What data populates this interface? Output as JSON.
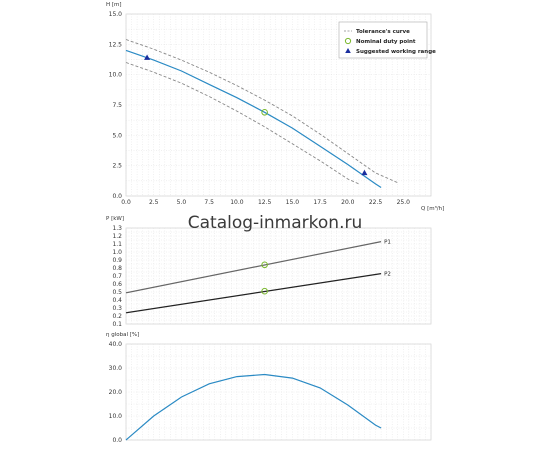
{
  "watermark": "Catalog-inmarkon.ru",
  "chart_data": [
    {
      "type": "line",
      "ylabel": "H [m]",
      "xlabel": "Q [m³/h]",
      "xlim": [
        0,
        27.5
      ],
      "ylim": [
        0,
        15
      ],
      "xticks": [
        0,
        2.5,
        5,
        7.5,
        10,
        12.5,
        15,
        17.5,
        20,
        22.5,
        25
      ],
      "xtick_labels": [
        "0.0",
        "2.5",
        "5.0",
        "7.5",
        "10.0",
        "12.5",
        "15.0",
        "17.5",
        "20.0",
        "22.5",
        "25.0"
      ],
      "yticks": [
        0,
        2.5,
        5,
        7.5,
        10,
        12.5,
        15
      ],
      "ytick_labels": [
        "0.0",
        "2.5",
        "5.0",
        "7.5",
        "10.0",
        "12.5",
        "15.0"
      ],
      "grid": true,
      "legend": {
        "placement": "top-right",
        "items": [
          {
            "label": "Tolerance's curve",
            "marker": "dash"
          },
          {
            "label": "Nominal duty point",
            "marker": "circle"
          },
          {
            "label": "Suggested working range",
            "marker": "triangle"
          }
        ]
      },
      "series": [
        {
          "role": "main",
          "color": "#2a8ac4",
          "x": [
            0,
            2.5,
            5,
            7.5,
            10,
            12.5,
            15,
            17.5,
            20,
            22.5,
            23
          ],
          "y": [
            12.0,
            11.2,
            10.3,
            9.2,
            8.1,
            6.9,
            5.6,
            4.1,
            2.6,
            1.0,
            0.7
          ]
        },
        {
          "role": "tolerance-upper",
          "color": "#888888",
          "x": [
            0,
            2.5,
            5,
            7.5,
            10,
            12.5,
            15,
            17.5,
            20,
            22.5,
            24.5
          ],
          "y": [
            12.9,
            12.1,
            11.2,
            10.2,
            9.1,
            7.9,
            6.6,
            5.1,
            3.5,
            1.9,
            1.1
          ]
        },
        {
          "role": "tolerance-lower",
          "color": "#888888",
          "x": [
            0,
            2.5,
            5,
            7.5,
            10,
            12.5,
            15,
            17.5,
            20,
            21
          ],
          "y": [
            11.0,
            10.2,
            9.3,
            8.2,
            7.0,
            5.7,
            4.3,
            2.9,
            1.4,
            1.0
          ]
        }
      ],
      "points": [
        {
          "type": "nominal",
          "x": 12.5,
          "y": 6.9
        },
        {
          "type": "range",
          "x": 1.9,
          "y": 11.4
        },
        {
          "type": "range",
          "x": 21.5,
          "y": 1.9
        }
      ]
    },
    {
      "type": "line",
      "ylabel": "P [kW]",
      "xlim": [
        0,
        27.5
      ],
      "ylim": [
        0.1,
        1.3
      ],
      "yticks": [
        0.1,
        0.2,
        0.3,
        0.4,
        0.5,
        0.6,
        0.7,
        0.8,
        0.9,
        1.0,
        1.1,
        1.2,
        1.3
      ],
      "ytick_labels": [
        "0.1",
        "0.2",
        "0.3",
        "0.4",
        "0.5",
        "0.6",
        "0.7",
        "0.8",
        "0.9",
        "1.0",
        "1.1",
        "1.2",
        "1.3"
      ],
      "grid": true,
      "series": [
        {
          "name": "P1",
          "color": "#666666",
          "x": [
            0,
            23
          ],
          "y": [
            0.49,
            1.13
          ]
        },
        {
          "name": "P2",
          "color": "#222222",
          "x": [
            0,
            23
          ],
          "y": [
            0.24,
            0.73
          ]
        }
      ],
      "points": [
        {
          "type": "nominal",
          "x": 12.5,
          "y": 0.84
        },
        {
          "type": "nominal",
          "x": 12.5,
          "y": 0.51
        }
      ]
    },
    {
      "type": "line",
      "ylabel": "η global [%]",
      "xlim": [
        0,
        27.5
      ],
      "ylim": [
        0,
        40
      ],
      "yticks": [
        0,
        10,
        20,
        30,
        40
      ],
      "ytick_labels": [
        "0.0",
        "10.0",
        "20.0",
        "30.0",
        "40.0"
      ],
      "grid": true,
      "series": [
        {
          "color": "#2a8ac4",
          "x": [
            0,
            2.5,
            5,
            7.5,
            10,
            12.5,
            15,
            17.5,
            20,
            22.5,
            23
          ],
          "y": [
            0,
            10.0,
            17.9,
            23.4,
            26.4,
            27.3,
            25.8,
            21.7,
            14.6,
            6.2,
            5.0
          ]
        }
      ]
    }
  ]
}
